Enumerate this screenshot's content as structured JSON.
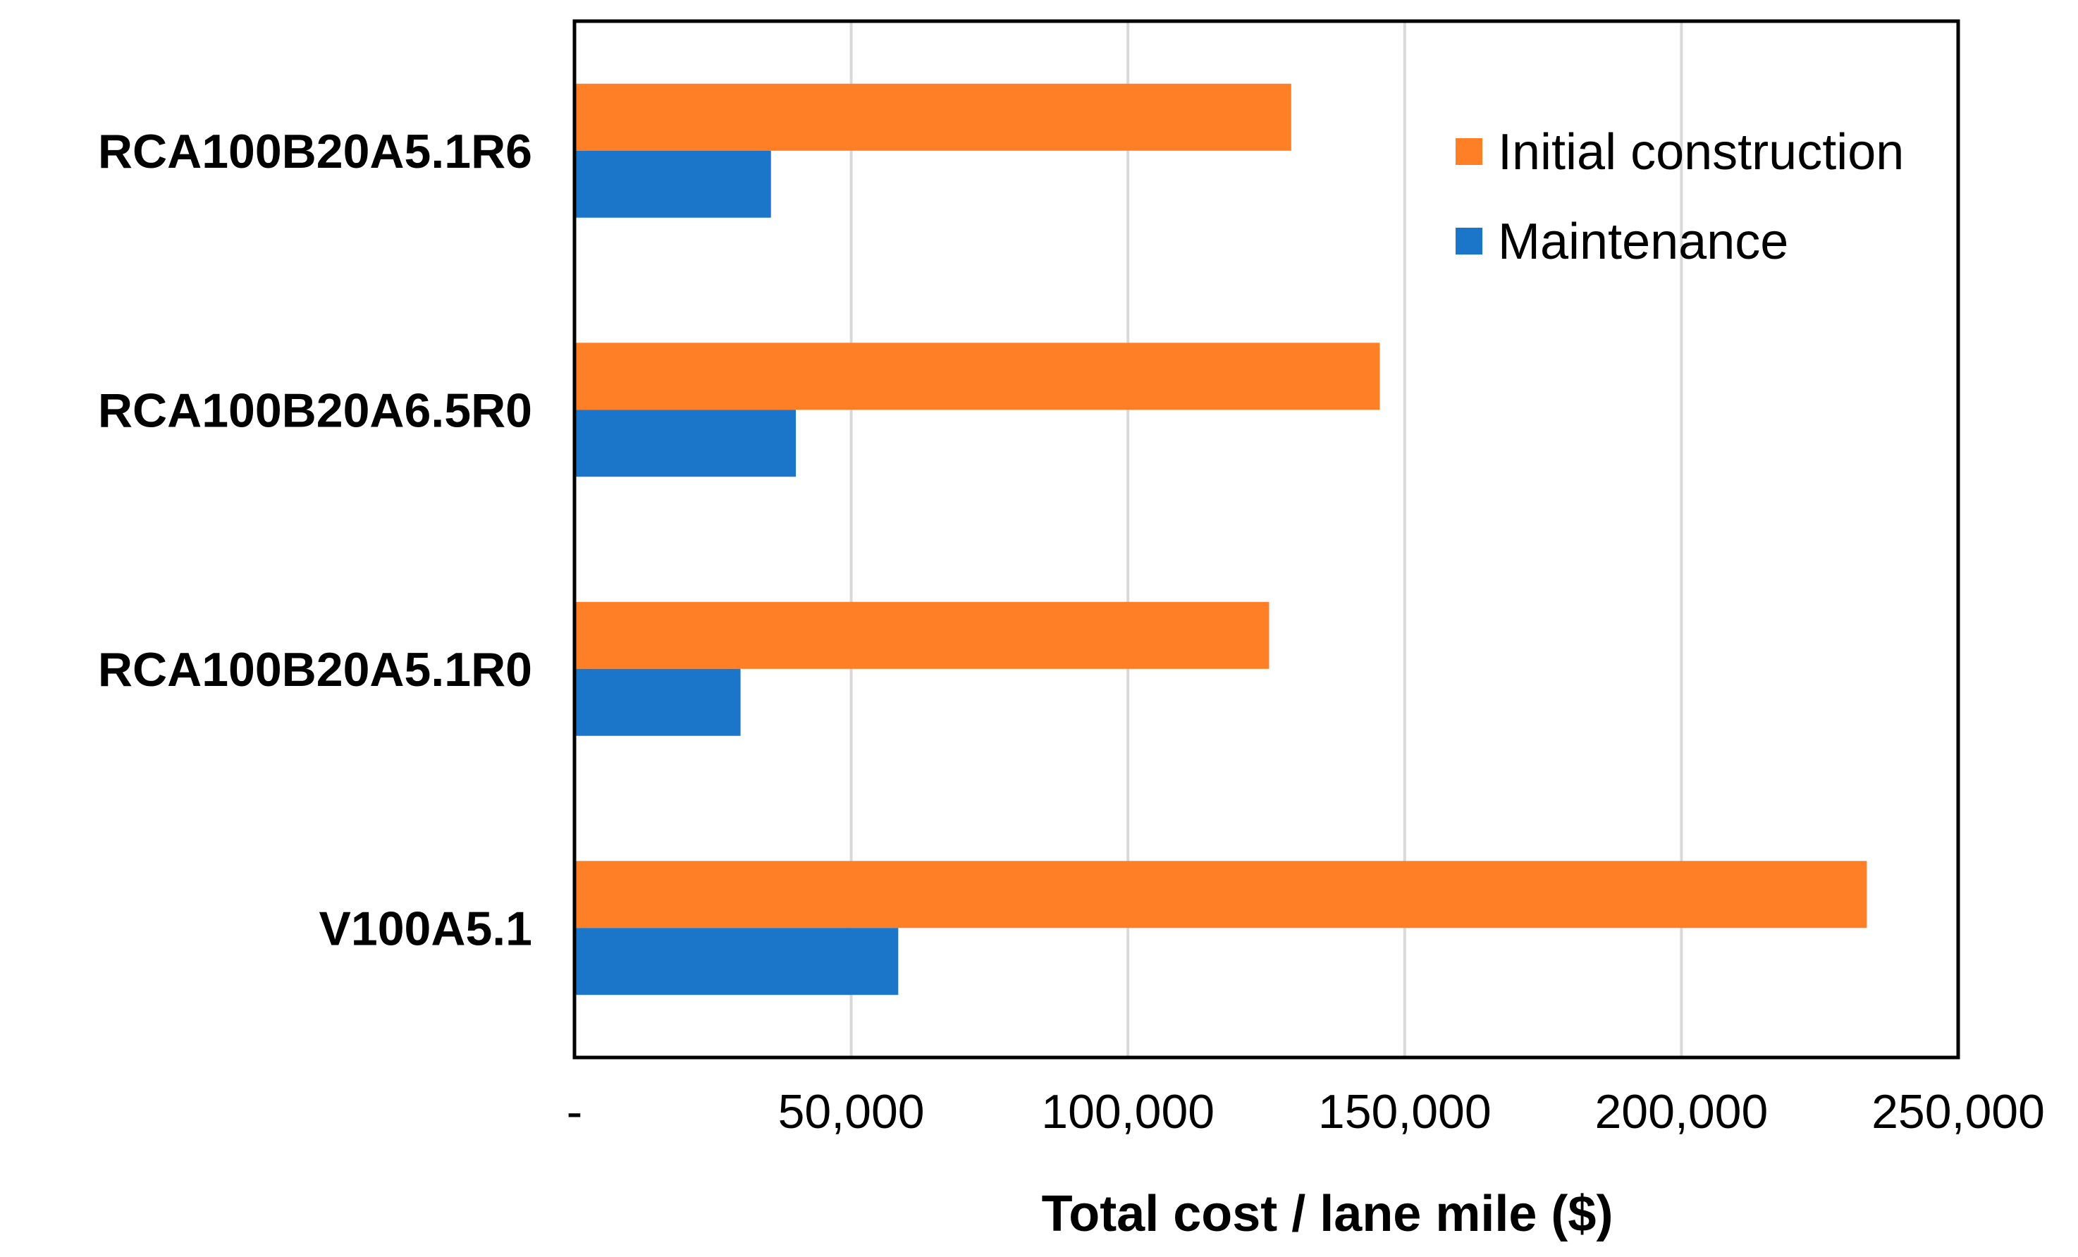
{
  "chart_data": {
    "type": "bar",
    "orientation": "horizontal",
    "categories": [
      "RCA100B20A5.1R6",
      "RCA100B20A6.5R0",
      "RCA100B20A5.1R0",
      "V100A5.1"
    ],
    "series": [
      {
        "name": "Initial construction",
        "color": "#FF7F27",
        "values": [
          129500,
          145500,
          125500,
          233500
        ]
      },
      {
        "name": "Maintenance",
        "color": "#1B75C9",
        "values": [
          35500,
          40000,
          30000,
          58500
        ]
      }
    ],
    "xlim": [
      0,
      250000
    ],
    "xticks": [
      0,
      50000,
      100000,
      150000,
      200000,
      250000
    ],
    "xtick_labels": [
      "-",
      "50,000",
      "100,000",
      "150,000",
      "200,000",
      "250,000"
    ],
    "xlabel": "Total cost / lane mile ($)",
    "ylabel": "",
    "title": "",
    "grid": "vertical",
    "legend": "top-right"
  }
}
